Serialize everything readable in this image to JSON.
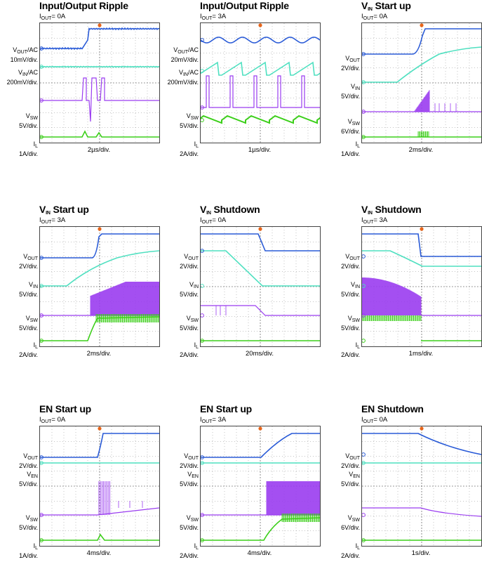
{
  "colors": {
    "vout": "#2a5bd7",
    "vin": "#4fe0c0",
    "sw": "#9a3cf0",
    "il": "#3ccf1a",
    "trigger": "#e8651a",
    "grid": "#8a8a8a"
  },
  "panels": [
    {
      "title_main": "Input/Output Ripple",
      "title_sub": "",
      "cond": "OUT",
      "cond_val": "= 0A",
      "timebase": "2µs/div.",
      "labels": [
        {
          "name": "V",
          "sub": "OUT",
          "suffix": "/AC",
          "scale": "10mV/div."
        },
        {
          "name": "V",
          "sub": "IN",
          "suffix": "/AC",
          "scale": "200mV/div."
        },
        {
          "name": "V",
          "sub": "SW",
          "suffix": "",
          "scale": "5V/div."
        },
        {
          "name": "I",
          "sub": "L",
          "suffix": "",
          "scale": "1A/div."
        }
      ]
    },
    {
      "title_main": "Input/Output Ripple",
      "title_sub": "",
      "cond": "OUT",
      "cond_val": "= 3A",
      "timebase": "1µs/div.",
      "labels": [
        {
          "name": "V",
          "sub": "OUT",
          "suffix": "/AC",
          "scale": "20mV/div."
        },
        {
          "name": "V",
          "sub": "IN",
          "suffix": "/AC",
          "scale": "200mV/div."
        },
        {
          "name": "V",
          "sub": "SW",
          "suffix": "",
          "scale": "5V/div."
        },
        {
          "name": "I",
          "sub": "L",
          "suffix": "",
          "scale": "2A/div."
        }
      ]
    },
    {
      "title_main": "V",
      "title_sub": "IN",
      "title_rest": " Start up",
      "cond": "OUT",
      "cond_val": "= 0A",
      "timebase": "2ms/div.",
      "labels": [
        {
          "name": "V",
          "sub": "OUT",
          "suffix": "",
          "scale": "2V/div."
        },
        {
          "name": "V",
          "sub": "IN",
          "suffix": "",
          "scale": "5V/div."
        },
        {
          "name": "V",
          "sub": "SW",
          "suffix": "",
          "scale": "6V/div."
        },
        {
          "name": "I",
          "sub": "L",
          "suffix": "",
          "scale": "1A/div."
        }
      ]
    },
    {
      "title_main": "V",
      "title_sub": "IN",
      "title_rest": " Start up",
      "cond": "OUT",
      "cond_val": "= 3A",
      "timebase": "2ms/div.",
      "labels": [
        {
          "name": "V",
          "sub": "OUT",
          "suffix": "",
          "scale": "2V/div."
        },
        {
          "name": "V",
          "sub": "IN",
          "suffix": "",
          "scale": "5V/div."
        },
        {
          "name": "V",
          "sub": "SW",
          "suffix": "",
          "scale": "5V/div."
        },
        {
          "name": "I",
          "sub": "L",
          "suffix": "",
          "scale": "2A/div."
        }
      ]
    },
    {
      "title_main": "V",
      "title_sub": "IN",
      "title_rest": " Shutdown",
      "cond": "OUT",
      "cond_val": "= 0A",
      "timebase": "20ms/div.",
      "labels": [
        {
          "name": "V",
          "sub": "OUT",
          "suffix": "",
          "scale": "2V/div."
        },
        {
          "name": "V",
          "sub": "IN",
          "suffix": "",
          "scale": "5V/div."
        },
        {
          "name": "V",
          "sub": "SW",
          "suffix": "",
          "scale": "5V/div."
        },
        {
          "name": "I",
          "sub": "L",
          "suffix": "",
          "scale": "2A/div."
        }
      ]
    },
    {
      "title_main": "V",
      "title_sub": "IN",
      "title_rest": " Shutdown",
      "cond": "OUT",
      "cond_val": "= 3A",
      "timebase": "1ms/div.",
      "labels": [
        {
          "name": "V",
          "sub": "OUT",
          "suffix": "",
          "scale": "2V/div."
        },
        {
          "name": "V",
          "sub": "IN",
          "suffix": "",
          "scale": "5V/div."
        },
        {
          "name": "V",
          "sub": "SW",
          "suffix": "",
          "scale": "5V/div."
        },
        {
          "name": "I",
          "sub": "L",
          "suffix": "",
          "scale": "2A/div."
        }
      ]
    },
    {
      "title_main": "EN Start up",
      "title_sub": "",
      "cond": "OUT",
      "cond_val": "= 0A",
      "timebase": "4ms/div.",
      "labels": [
        {
          "name": "V",
          "sub": "OUT",
          "suffix": "",
          "scale": "2V/div."
        },
        {
          "name": "V",
          "sub": "EN",
          "suffix": "",
          "scale": "5V/div."
        },
        {
          "name": "V",
          "sub": "SW",
          "suffix": "",
          "scale": "5V/div."
        },
        {
          "name": "I",
          "sub": "L",
          "suffix": "",
          "scale": "1A/div."
        }
      ]
    },
    {
      "title_main": "EN Start up",
      "title_sub": "",
      "cond": "OUT",
      "cond_val": "= 3A",
      "timebase": "4ms/div.",
      "labels": [
        {
          "name": "V",
          "sub": "OUT",
          "suffix": "",
          "scale": "2V/div."
        },
        {
          "name": "V",
          "sub": "EN",
          "suffix": "",
          "scale": "5V/div."
        },
        {
          "name": "V",
          "sub": "SW",
          "suffix": "",
          "scale": "5V/div."
        },
        {
          "name": "I",
          "sub": "L",
          "suffix": "",
          "scale": "2A/div."
        }
      ]
    },
    {
      "title_main": "EN Shutdown",
      "title_sub": "",
      "cond": "OUT",
      "cond_val": "= 0A",
      "timebase": "1s/div.",
      "labels": [
        {
          "name": "V",
          "sub": "OUT",
          "suffix": "",
          "scale": "2V/div."
        },
        {
          "name": "V",
          "sub": "EN",
          "suffix": "",
          "scale": "5V/div."
        },
        {
          "name": "V",
          "sub": "SW",
          "suffix": "",
          "scale": "6V/div."
        },
        {
          "name": "I",
          "sub": "L",
          "suffix": "",
          "scale": "2A/div."
        }
      ]
    }
  ],
  "chart_data": {
    "type": "line",
    "note_series": [
      "VOUT",
      "VIN/VEN",
      "VSW",
      "IL"
    ],
    "grid_divisions": {
      "x": 10,
      "y": 8
    }
  }
}
